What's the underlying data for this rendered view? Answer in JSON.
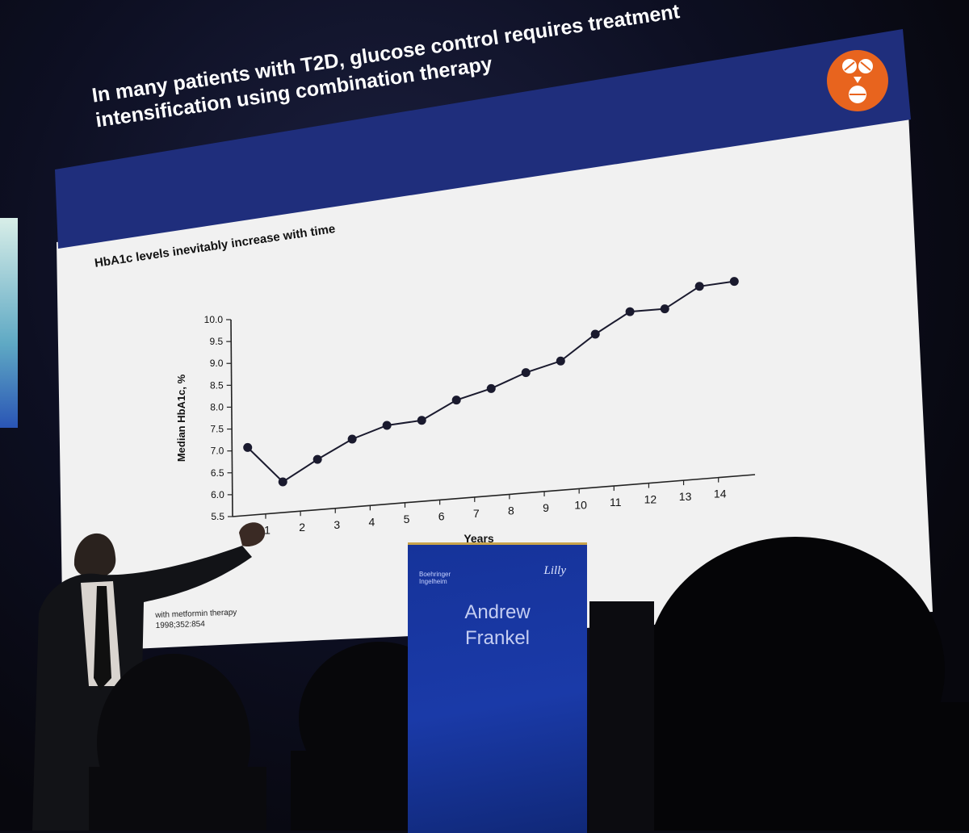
{
  "slide": {
    "title_line1": "In many patients with T2D, glucose control requires treatment",
    "title_line2": "intensification using combination therapy",
    "subtitle": "HbA1c levels inevitably increase with time",
    "footnote_line1": "with metformin therapy",
    "footnote_line2": "1998;352:854",
    "badge_icon": "pill-combination-icon",
    "colors": {
      "header": "#1f2e7c",
      "badge": "#e8641e",
      "background": "#f1f1f1"
    }
  },
  "podium": {
    "logo_left": "Boehringer Ingelheim",
    "logo_right": "Lilly",
    "name_line1": "Andrew",
    "name_line2": "Frankel"
  },
  "chart_data": {
    "type": "line",
    "title": "HbA1c levels inevitably increase with time",
    "xlabel": "Years",
    "ylabel": "Median HbA1c, %",
    "x": [
      0,
      1,
      2,
      3,
      4,
      5,
      6,
      7,
      8,
      9,
      10,
      11,
      12,
      13,
      14
    ],
    "values": [
      7.05,
      6.2,
      6.65,
      7.05,
      7.3,
      7.35,
      7.75,
      7.95,
      8.25,
      8.45,
      9.0,
      9.45,
      9.45,
      9.9,
      9.95
    ],
    "ylim": [
      5.5,
      10.0
    ],
    "yticks": [
      "5.5",
      "6.0",
      "6.5",
      "7.0",
      "7.5",
      "8.0",
      "8.5",
      "9.0",
      "9.5",
      "10.0"
    ],
    "xticks": [
      "1",
      "2",
      "3",
      "4",
      "5",
      "6",
      "7",
      "8",
      "9",
      "10",
      "11",
      "12",
      "13",
      "14"
    ],
    "grid": false,
    "marker": "circle",
    "line_color": "#1a1a2e"
  }
}
